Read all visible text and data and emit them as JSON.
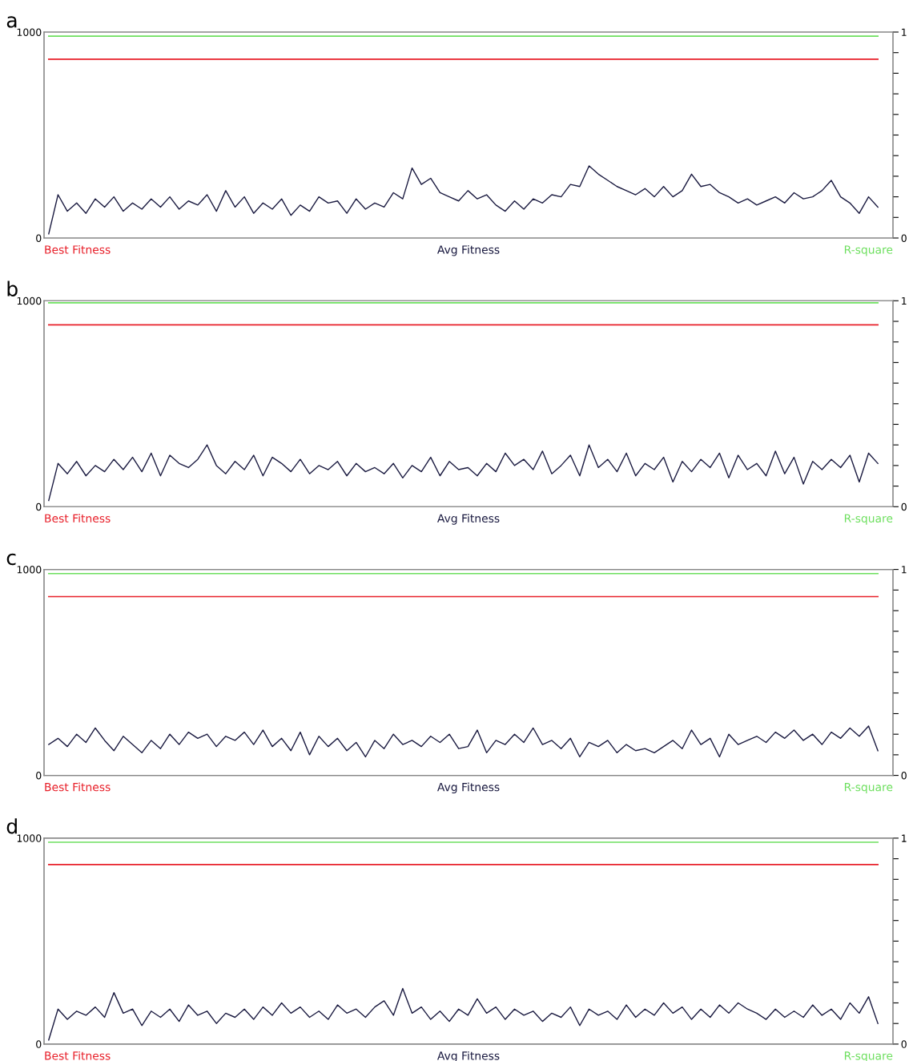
{
  "chart_data": [
    {
      "type": "line",
      "title": "a",
      "legend": "bottom",
      "categories": [
        null,
        null,
        null,
        null,
        null,
        null,
        null,
        null,
        null,
        null,
        null,
        null,
        null,
        null,
        null,
        null,
        null,
        null,
        null,
        null,
        null,
        null,
        null,
        null,
        null,
        null,
        null,
        null,
        null,
        null,
        null,
        null,
        null,
        null,
        null,
        null,
        null,
        null,
        null,
        null,
        null,
        null,
        null,
        null,
        null,
        null,
        null,
        null,
        null,
        null,
        null,
        null,
        null,
        null,
        null,
        null,
        null,
        null,
        null,
        null,
        null,
        null,
        null,
        null,
        null,
        null,
        null,
        null,
        null,
        null,
        null,
        null,
        null,
        null,
        null,
        null,
        null,
        null,
        null,
        null,
        null,
        null,
        null,
        null,
        null,
        null,
        null,
        null,
        null,
        null
      ],
      "series": [
        {
          "name": "Avg Fitness",
          "color": "#1a1a40",
          "values": [
            20,
            210,
            130,
            170,
            120,
            190,
            150,
            200,
            130,
            170,
            140,
            190,
            150,
            200,
            140,
            180,
            160,
            210,
            130,
            230,
            150,
            200,
            120,
            170,
            140,
            190,
            110,
            160,
            130,
            200,
            170,
            180,
            120,
            190,
            140,
            170,
            150,
            220,
            190,
            340,
            260,
            290,
            220,
            200,
            180,
            230,
            190,
            210,
            160,
            130,
            180,
            140,
            190,
            170,
            210,
            200,
            260,
            250,
            350,
            310,
            280,
            250,
            230,
            210,
            240,
            200,
            250,
            200,
            230,
            310,
            250,
            260,
            220,
            200,
            170,
            190,
            160,
            180,
            200,
            170,
            220,
            190,
            200,
            230,
            280,
            200,
            170,
            120,
            200,
            150
          ]
        }
      ],
      "ylim": [
        0,
        1000
      ],
      "yticks": [
        0,
        1000
      ],
      "y2lim": [
        0,
        1
      ],
      "y2ticks": [
        0,
        {
          "value": 0.1,
          "label": null
        },
        {
          "value": 0.2,
          "label": null
        },
        {
          "value": 0.3,
          "label": null
        },
        {
          "value": 0.4,
          "label": null
        },
        {
          "value": 0.5,
          "label": null
        },
        {
          "value": 0.6,
          "label": null
        },
        {
          "value": 0.7,
          "label": null
        },
        {
          "value": 0.8,
          "label": null
        },
        {
          "value": 0.9,
          "label": null
        },
        1
      ],
      "ref_lines": [
        {
          "axis": "y",
          "value": 868,
          "label": "Best Fitness",
          "color": "#e8202a"
        },
        {
          "axis": "y2",
          "value": 0.98,
          "label": "R-square",
          "color": "#6ddf5e"
        }
      ]
    },
    {
      "type": "line",
      "title": "b",
      "legend": "bottom",
      "categories": [
        null,
        null,
        null,
        null,
        null,
        null,
        null,
        null,
        null,
        null,
        null,
        null,
        null,
        null,
        null,
        null,
        null,
        null,
        null,
        null,
        null,
        null,
        null,
        null,
        null,
        null,
        null,
        null,
        null,
        null,
        null,
        null,
        null,
        null,
        null,
        null,
        null,
        null,
        null,
        null,
        null,
        null,
        null,
        null,
        null,
        null,
        null,
        null,
        null,
        null,
        null,
        null,
        null,
        null,
        null,
        null,
        null,
        null,
        null,
        null,
        null,
        null,
        null,
        null,
        null,
        null,
        null,
        null,
        null,
        null,
        null,
        null,
        null,
        null,
        null,
        null,
        null,
        null,
        null,
        null,
        null,
        null,
        null,
        null,
        null,
        null,
        null,
        null,
        null,
        null
      ],
      "series": [
        {
          "name": "Avg Fitness",
          "color": "#1a1a40",
          "values": [
            30,
            210,
            160,
            220,
            150,
            200,
            170,
            230,
            180,
            240,
            170,
            260,
            150,
            250,
            210,
            190,
            230,
            300,
            200,
            160,
            220,
            180,
            250,
            150,
            240,
            210,
            170,
            230,
            160,
            200,
            180,
            220,
            150,
            210,
            170,
            190,
            160,
            210,
            140,
            200,
            170,
            240,
            150,
            220,
            180,
            190,
            150,
            210,
            170,
            260,
            200,
            230,
            180,
            270,
            160,
            200,
            250,
            150,
            300,
            190,
            230,
            170,
            260,
            150,
            210,
            180,
            240,
            120,
            220,
            170,
            230,
            190,
            260,
            140,
            250,
            180,
            210,
            150,
            270,
            160,
            240,
            110,
            220,
            180,
            230,
            190,
            250,
            120,
            260,
            210
          ]
        }
      ],
      "ylim": [
        0,
        1000
      ],
      "yticks": [
        0,
        1000
      ],
      "y2lim": [
        0,
        1
      ],
      "y2ticks": [
        0,
        {
          "value": 0.1,
          "label": null
        },
        {
          "value": 0.2,
          "label": null
        },
        {
          "value": 0.3,
          "label": null
        },
        {
          "value": 0.4,
          "label": null
        },
        {
          "value": 0.5,
          "label": null
        },
        {
          "value": 0.6,
          "label": null
        },
        {
          "value": 0.7,
          "label": null
        },
        {
          "value": 0.8,
          "label": null
        },
        {
          "value": 0.9,
          "label": null
        },
        1
      ],
      "ref_lines": [
        {
          "axis": "y",
          "value": 883,
          "label": "Best Fitness",
          "color": "#e8202a"
        },
        {
          "axis": "y2",
          "value": 0.99,
          "label": "R-square",
          "color": "#6ddf5e"
        }
      ]
    },
    {
      "type": "line",
      "title": "c",
      "legend": "bottom",
      "categories": [
        null,
        null,
        null,
        null,
        null,
        null,
        null,
        null,
        null,
        null,
        null,
        null,
        null,
        null,
        null,
        null,
        null,
        null,
        null,
        null,
        null,
        null,
        null,
        null,
        null,
        null,
        null,
        null,
        null,
        null,
        null,
        null,
        null,
        null,
        null,
        null,
        null,
        null,
        null,
        null,
        null,
        null,
        null,
        null,
        null,
        null,
        null,
        null,
        null,
        null,
        null,
        null,
        null,
        null,
        null,
        null,
        null,
        null,
        null,
        null,
        null,
        null,
        null,
        null,
        null,
        null,
        null,
        null,
        null,
        null,
        null,
        null,
        null,
        null,
        null,
        null,
        null,
        null,
        null,
        null,
        null,
        null,
        null,
        null,
        null,
        null,
        null,
        null,
        null,
        null
      ],
      "series": [
        {
          "name": "Avg Fitness",
          "color": "#1a1a40",
          "values": [
            150,
            180,
            140,
            200,
            160,
            230,
            170,
            120,
            190,
            150,
            110,
            170,
            130,
            200,
            150,
            210,
            180,
            200,
            140,
            190,
            170,
            210,
            150,
            220,
            140,
            180,
            120,
            210,
            100,
            190,
            140,
            180,
            120,
            160,
            90,
            170,
            130,
            200,
            150,
            170,
            140,
            190,
            160,
            200,
            130,
            140,
            220,
            110,
            170,
            150,
            200,
            160,
            230,
            150,
            170,
            130,
            180,
            90,
            160,
            140,
            170,
            110,
            150,
            120,
            130,
            110,
            140,
            170,
            130,
            220,
            150,
            180,
            90,
            200,
            150,
            170,
            190,
            160,
            210,
            180,
            220,
            170,
            200,
            150,
            210,
            180,
            230,
            190,
            240,
            120
          ]
        }
      ],
      "ylim": [
        0,
        1000
      ],
      "yticks": [
        0,
        1000
      ],
      "y2lim": [
        0,
        1
      ],
      "y2ticks": [
        0,
        {
          "value": 0.1,
          "label": null
        },
        {
          "value": 0.2,
          "label": null
        },
        {
          "value": 0.3,
          "label": null
        },
        {
          "value": 0.4,
          "label": null
        },
        {
          "value": 0.5,
          "label": null
        },
        {
          "value": 0.6,
          "label": null
        },
        {
          "value": 0.7,
          "label": null
        },
        {
          "value": 0.8,
          "label": null
        },
        {
          "value": 0.9,
          "label": null
        },
        1
      ],
      "ref_lines": [
        {
          "axis": "y",
          "value": 868,
          "label": "Best Fitness",
          "color": "#e8202a"
        },
        {
          "axis": "y2",
          "value": 0.98,
          "label": "R-square",
          "color": "#6ddf5e"
        }
      ]
    },
    {
      "type": "line",
      "title": "d",
      "legend": "bottom",
      "categories": [
        null,
        null,
        null,
        null,
        null,
        null,
        null,
        null,
        null,
        null,
        null,
        null,
        null,
        null,
        null,
        null,
        null,
        null,
        null,
        null,
        null,
        null,
        null,
        null,
        null,
        null,
        null,
        null,
        null,
        null,
        null,
        null,
        null,
        null,
        null,
        null,
        null,
        null,
        null,
        null,
        null,
        null,
        null,
        null,
        null,
        null,
        null,
        null,
        null,
        null,
        null,
        null,
        null,
        null,
        null,
        null,
        null,
        null,
        null,
        null,
        null,
        null,
        null,
        null,
        null,
        null,
        null,
        null,
        null,
        null,
        null,
        null,
        null,
        null,
        null,
        null,
        null,
        null,
        null,
        null,
        null,
        null,
        null,
        null,
        null,
        null,
        null,
        null,
        null,
        null
      ],
      "series": [
        {
          "name": "Avg Fitness",
          "color": "#1a1a40",
          "values": [
            20,
            170,
            120,
            160,
            140,
            180,
            130,
            250,
            150,
            170,
            90,
            160,
            130,
            170,
            110,
            190,
            140,
            160,
            100,
            150,
            130,
            170,
            120,
            180,
            140,
            200,
            150,
            180,
            130,
            160,
            120,
            190,
            150,
            170,
            130,
            180,
            210,
            140,
            270,
            150,
            180,
            120,
            160,
            110,
            170,
            140,
            220,
            150,
            180,
            120,
            170,
            140,
            160,
            110,
            150,
            130,
            180,
            90,
            170,
            140,
            160,
            120,
            190,
            130,
            170,
            140,
            200,
            150,
            180,
            120,
            170,
            130,
            190,
            150,
            200,
            170,
            150,
            120,
            170,
            130,
            160,
            130,
            190,
            140,
            170,
            120,
            200,
            150,
            230,
            100
          ]
        }
      ],
      "ylim": [
        0,
        1000
      ],
      "yticks": [
        0,
        1000
      ],
      "y2lim": [
        0,
        1
      ],
      "y2ticks": [
        0,
        {
          "value": 0.1,
          "label": null
        },
        {
          "value": 0.2,
          "label": null
        },
        {
          "value": 0.3,
          "label": null
        },
        {
          "value": 0.4,
          "label": null
        },
        {
          "value": 0.5,
          "label": null
        },
        {
          "value": 0.6,
          "label": null
        },
        {
          "value": 0.7,
          "label": null
        },
        {
          "value": 0.8,
          "label": null
        },
        {
          "value": 0.9,
          "label": null
        },
        1
      ],
      "ref_lines": [
        {
          "axis": "y",
          "value": 872,
          "label": "Best Fitness",
          "color": "#e8202a"
        },
        {
          "axis": "y2",
          "value": 0.98,
          "label": "R-square",
          "color": "#6ddf5e"
        }
      ]
    }
  ]
}
